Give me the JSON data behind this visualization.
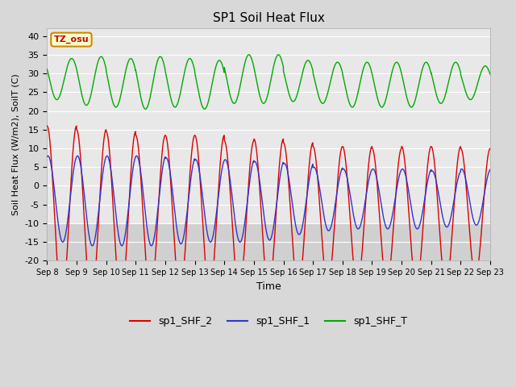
{
  "title": "SP1 Soil Heat Flux",
  "xlabel": "Time",
  "ylabel": "Soil Heat Flux (W/m2), SoilT (C)",
  "ylim": [
    -20,
    42
  ],
  "yticks": [
    -20,
    -15,
    -10,
    -5,
    0,
    5,
    10,
    15,
    20,
    25,
    30,
    35,
    40
  ],
  "color_red": "#dd0000",
  "color_blue": "#3333cc",
  "color_green": "#00aa00",
  "fig_bg_color": "#d8d8d8",
  "plot_bg_top": "#e8e8e8",
  "plot_bg_bottom": "#d0d0d0",
  "grid_color": "#ffffff",
  "annotation_text": "TZ_osu",
  "annotation_facecolor": "#ffffcc",
  "annotation_edgecolor": "#cc8800",
  "annotation_textcolor": "#cc0000",
  "legend_labels": [
    "sp1_SHF_2",
    "sp1_SHF_1",
    "sp1_SHF_T"
  ],
  "tick_labels": [
    "Sep 8",
    "Sep 9",
    "Sep 10",
    "Sep 11",
    "Sep 12",
    "Sep 13",
    "Sep 14",
    "Sep 15",
    "Sep 16",
    "Sep 17",
    "Sep 18",
    "Sep 19",
    "Sep 20",
    "Sep 21",
    "Sep 22",
    "Sep 23"
  ],
  "shf2_amplitudes": [
    23.5,
    23.0,
    22.5,
    21.5,
    21.0,
    21.0,
    20.0,
    20.0,
    19.5,
    18.5,
    18.5,
    18.0,
    18.5,
    18.5,
    17.0
  ],
  "shf2_offsets": [
    -7.5,
    -8.0,
    -8.0,
    -8.0,
    -7.5,
    -7.5,
    -8.0,
    -7.5,
    -8.0,
    -8.0,
    -8.0,
    -8.0,
    -8.0,
    -8.0,
    -7.0
  ],
  "shf1_amplitudes": [
    11.5,
    12.0,
    12.0,
    12.0,
    11.5,
    11.0,
    11.0,
    10.5,
    9.5,
    8.5,
    8.0,
    8.0,
    8.0,
    7.5,
    7.5
  ],
  "shf1_offsets": [
    -3.5,
    -4.0,
    -4.0,
    -4.0,
    -4.0,
    -4.0,
    -4.0,
    -4.0,
    -3.5,
    -3.5,
    -3.5,
    -3.5,
    -3.5,
    -3.5,
    -3.0
  ],
  "shft_amplitudes": [
    5.5,
    6.5,
    6.5,
    7.0,
    6.5,
    6.5,
    6.5,
    6.5,
    5.5,
    5.5,
    6.0,
    6.0,
    6.0,
    5.5,
    4.5
  ],
  "shft_offsets": [
    28.5,
    28.0,
    27.5,
    27.5,
    27.5,
    27.0,
    28.5,
    28.5,
    28.0,
    27.5,
    27.0,
    27.0,
    27.0,
    27.5,
    27.5
  ],
  "phase_shf2": 0.75,
  "phase_shf1": 0.78,
  "phase_shft": 0.58
}
